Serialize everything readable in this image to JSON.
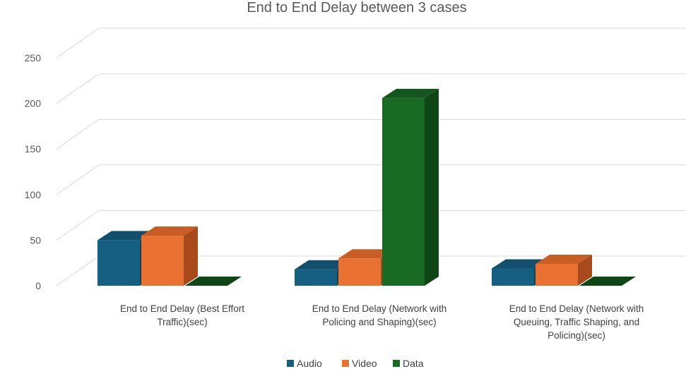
{
  "chart_data": {
    "type": "bar",
    "title": "End to End Delay between 3 cases",
    "xlabel": "",
    "ylabel": "",
    "ylim": [
      0,
      250
    ],
    "yticks": [
      0,
      50,
      100,
      150,
      200,
      250
    ],
    "grid": true,
    "legend_position": "bottom",
    "categories": [
      "End to End Delay (Best Effort Traffic)(sec)",
      "End to End Delay (Network with Policing and Shaping)(sec)",
      "End to End Delay (Network with Queuing, Traffic Shaping, and Policing)(sec)"
    ],
    "category_lines": [
      [
        "End to End Delay (Best Effort",
        "Traffic)(sec)"
      ],
      [
        "End to End Delay (Network with",
        "Policing and Shaping)(sec)"
      ],
      [
        "End to End Delay (Network with",
        "Queuing, Traffic Shaping, and",
        "Policing)(sec)"
      ]
    ],
    "series": [
      {
        "name": "Audio",
        "values": [
          50,
          18,
          19
        ],
        "color": "#156082",
        "side": "#0e4259",
        "top": "#124f6c"
      },
      {
        "name": "Video",
        "values": [
          55,
          30,
          24
        ],
        "color": "#e97132",
        "side": "#a84a1c",
        "top": "#c85e26"
      },
      {
        "name": "Data",
        "values": [
          0,
          206,
          0
        ],
        "color": "#196b24",
        "side": "#0f4616",
        "top": "#14561d"
      }
    ]
  }
}
